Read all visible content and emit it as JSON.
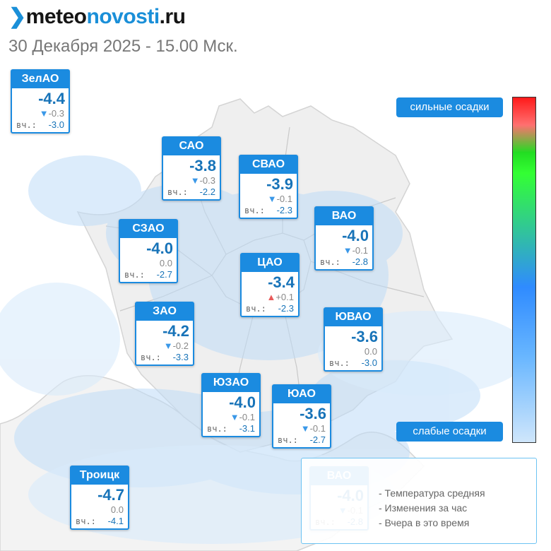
{
  "brand": {
    "mark": "❯",
    "part1": "meteo",
    "part2": "novosti",
    "part3": ".ru"
  },
  "timestamp": "30 Декабря 2025 - 15.00 Мск.",
  "colors": {
    "accent": "#1b8be0",
    "temp": "#1773b8",
    "decrease": "#3a98e8",
    "increase": "#e85a5a"
  },
  "districts": [
    {
      "name": "ЗелАО",
      "temp": "-4.4",
      "change": "-0.3",
      "trend": "down",
      "yesterday_label": "вч.:",
      "yesterday": "-3.0"
    },
    {
      "name": "САО",
      "temp": "-3.8",
      "change": "-0.3",
      "trend": "down",
      "yesterday_label": "вч.:",
      "yesterday": "-2.2"
    },
    {
      "name": "СВАО",
      "temp": "-3.9",
      "change": "-0.1",
      "trend": "down",
      "yesterday_label": "вч.:",
      "yesterday": "-2.3"
    },
    {
      "name": "ВАО",
      "temp": "-4.0",
      "change": "-0.1",
      "trend": "down",
      "yesterday_label": "вч.:",
      "yesterday": "-2.8"
    },
    {
      "name": "СЗАО",
      "temp": "-4.0",
      "change": "0.0",
      "trend": "none",
      "yesterday_label": "вч.:",
      "yesterday": "-2.7"
    },
    {
      "name": "ЦАО",
      "temp": "-3.4",
      "change": "+0.1",
      "trend": "up",
      "yesterday_label": "вч.:",
      "yesterday": "-2.3"
    },
    {
      "name": "ЗАО",
      "temp": "-4.2",
      "change": "-0.2",
      "trend": "down",
      "yesterday_label": "вч.:",
      "yesterday": "-3.3"
    },
    {
      "name": "ЮВАО",
      "temp": "-3.6",
      "change": "0.0",
      "trend": "none",
      "yesterday_label": "вч.:",
      "yesterday": "-3.0"
    },
    {
      "name": "ЮЗАО",
      "temp": "-4.0",
      "change": "-0.1",
      "trend": "down",
      "yesterday_label": "вч.:",
      "yesterday": "-3.1"
    },
    {
      "name": "ЮАО",
      "temp": "-3.6",
      "change": "-0.1",
      "trend": "down",
      "yesterday_label": "вч.:",
      "yesterday": "-2.7"
    },
    {
      "name": "Троицк",
      "temp": "-4.7",
      "change": "0.0",
      "trend": "none",
      "yesterday_label": "вч.:",
      "yesterday": "-4.1"
    }
  ],
  "precip_scale": {
    "strong_label": "сильные осадки",
    "weak_label": "слабые осадки"
  },
  "key": {
    "sample": {
      "name": "ВАО",
      "temp": "-4.0",
      "change": "-0.1",
      "trend": "down",
      "yesterday_label": "вч.:",
      "yesterday": "-2.8"
    },
    "descriptions": [
      "- Температура средняя",
      "- Изменения за час",
      "- Вчера в это время"
    ]
  }
}
